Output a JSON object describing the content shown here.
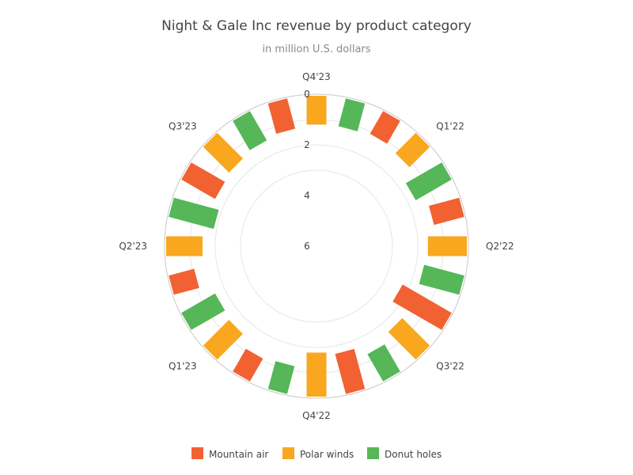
{
  "chart_data": {
    "type": "bar",
    "subtype": "radial-stacked-bar",
    "title": "Night & Gale Inc revenue by product category",
    "subtitle": "in million U.S. dollars",
    "categories": [
      "Q1'22",
      "Q2'22",
      "Q3'22",
      "Q4'22",
      "Q1'23",
      "Q2'23",
      "Q3'23",
      "Q4'23"
    ],
    "series": [
      {
        "name": "Mountain air",
        "color": "#f26132",
        "values": [
          1.3,
          2.3,
          1.7,
          1.1,
          1.1,
          1.6,
          1.3,
          1.1
        ]
      },
      {
        "name": "Polar winds",
        "color": "#f9a71e",
        "values": [
          1.2,
          1.6,
          1.6,
          1.8,
          1.5,
          1.5,
          1.5,
          1.2
        ]
      },
      {
        "name": "Donut holes",
        "color": "#55b757",
        "values": [
          1.7,
          1.7,
          1.3,
          1.2,
          1.6,
          1.9,
          1.4,
          1.2
        ]
      }
    ],
    "radial_axis": {
      "ticks": [
        0,
        2,
        4,
        6
      ],
      "range": [
        0,
        6
      ],
      "reversed": true
    },
    "grid": true,
    "legend_position": "bottom"
  }
}
